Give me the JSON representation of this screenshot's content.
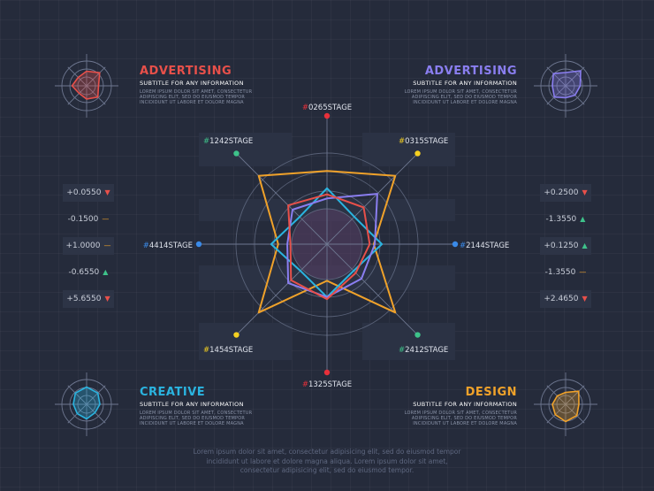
{
  "corners": [
    {
      "id": "tl",
      "title": "ADVERTISING",
      "subtitle": "SUBTITLE FOR ANY INFORMATION",
      "body": "LOREM IPSUM DOLOR SIT AMET, CONSECTETUR\nADIPISCING ELIT, SED DO EIUSMOD TEMPOR\nINCIDIDUNT UT LABORE ET DOLORE MAGNA",
      "color": "#e8504a",
      "align": "left"
    },
    {
      "id": "tr",
      "title": "ADVERTISING",
      "subtitle": "SUBTITLE FOR ANY INFORMATION",
      "body": "LOREM IPSUM DOLOR SIT AMET, CONSECTETUR\nADIPISCING ELIT, SED DO EIUSMOD TEMPOR\nINCIDIDUNT UT LABORE ET DOLORE MAGNA",
      "color": "#8a7ef0",
      "align": "right"
    },
    {
      "id": "bl",
      "title": "CREATIVE",
      "subtitle": "SUBTITLE FOR ANY INFORMATION",
      "body": "LOREM IPSUM DOLOR SIT AMET, CONSECTETUR\nADIPISCING ELIT, SED DO EIUSMOD TEMPOR\nINCIDIDUNT UT LABORE ET DOLORE MAGNA",
      "color": "#2ab4e0",
      "align": "left"
    },
    {
      "id": "br",
      "title": "DESIGN",
      "subtitle": "SUBTITLE FOR ANY INFORMATION",
      "body": "LOREM IPSUM DOLOR SIT AMET, CONSECTETUR\nADIPISCING ELIT, SED DO EIUSMOD TEMPOR\nINCIDIDUNT UT LABORE ET DOLORE MAGNA",
      "color": "#f0a22a",
      "align": "right"
    }
  ],
  "stats_left": [
    {
      "value": "+0.0550",
      "arrow": "▼",
      "arrow_color": "#e8504a",
      "boxed": true
    },
    {
      "value": "-0.1500",
      "arrow": "—",
      "arrow_color": "#f0a22a",
      "boxed": false
    },
    {
      "value": "+1.0000",
      "arrow": "—",
      "arrow_color": "#f0a22a",
      "boxed": true
    },
    {
      "value": "-0.6550",
      "arrow": "▲",
      "arrow_color": "#3ec28a",
      "boxed": false
    },
    {
      "value": "+5.6550",
      "arrow": "▼",
      "arrow_color": "#e8504a",
      "boxed": true
    }
  ],
  "stats_right": [
    {
      "value": "+0.2500",
      "arrow": "▼",
      "arrow_color": "#e8504a",
      "boxed": true
    },
    {
      "value": "-1.3550",
      "arrow": "▲",
      "arrow_color": "#3ec28a",
      "boxed": false
    },
    {
      "value": "+0.1250",
      "arrow": "▲",
      "arrow_color": "#3ec28a",
      "boxed": true
    },
    {
      "value": "-1.3550",
      "arrow": "—",
      "arrow_color": "#f0a22a",
      "boxed": false
    },
    {
      "value": "+2.4650",
      "arrow": "▼",
      "arrow_color": "#e8504a",
      "boxed": true
    }
  ],
  "footer": "Lorem ipsum dolor sit amet, consectetur adipisicing elit, sed do eiusmod tempor\nincididunt ut labore et dolore magna aliqua. Lorem ipsum dolor sit amet,\nconsectetur adipisicing elit, sed do eiusmod tempor.",
  "chart_data": {
    "type": "radar",
    "title": "",
    "axes": [
      {
        "hash": "#",
        "label": "0265STAGE",
        "dot_color": "#e8303a"
      },
      {
        "hash": "#",
        "label": "0315STAGE",
        "dot_color": "#f5d020"
      },
      {
        "hash": "#",
        "label": "2144STAGE",
        "dot_color": "#3a8ae8"
      },
      {
        "hash": "#",
        "label": "2412STAGE",
        "dot_color": "#3ec28a"
      },
      {
        "hash": "#",
        "label": "1325STAGE",
        "dot_color": "#e8303a"
      },
      {
        "hash": "#",
        "label": "1454STAGE",
        "dot_color": "#f5d020"
      },
      {
        "hash": "#",
        "label": "4414STAGE",
        "dot_color": "#3a8ae8"
      },
      {
        "hash": "#",
        "label": "1242STAGE",
        "dot_color": "#3ec28a"
      }
    ],
    "rmax": 1,
    "series": [
      {
        "color": "#f0a22a",
        "values": [
          0.72,
          0.95,
          0.46,
          0.95,
          0.36,
          0.95,
          0.48,
          0.95
        ]
      },
      {
        "color": "#2ab4e0",
        "values": [
          0.55,
          0.38,
          0.54,
          0.37,
          0.52,
          0.37,
          0.55,
          0.38
        ]
      },
      {
        "color": "#8a7ef0",
        "values": [
          0.45,
          0.7,
          0.47,
          0.48,
          0.52,
          0.54,
          0.39,
          0.48
        ]
      },
      {
        "color": "#e8504a",
        "values": [
          0.49,
          0.51,
          0.42,
          0.4,
          0.54,
          0.5,
          0.36,
          0.54
        ]
      }
    ]
  }
}
